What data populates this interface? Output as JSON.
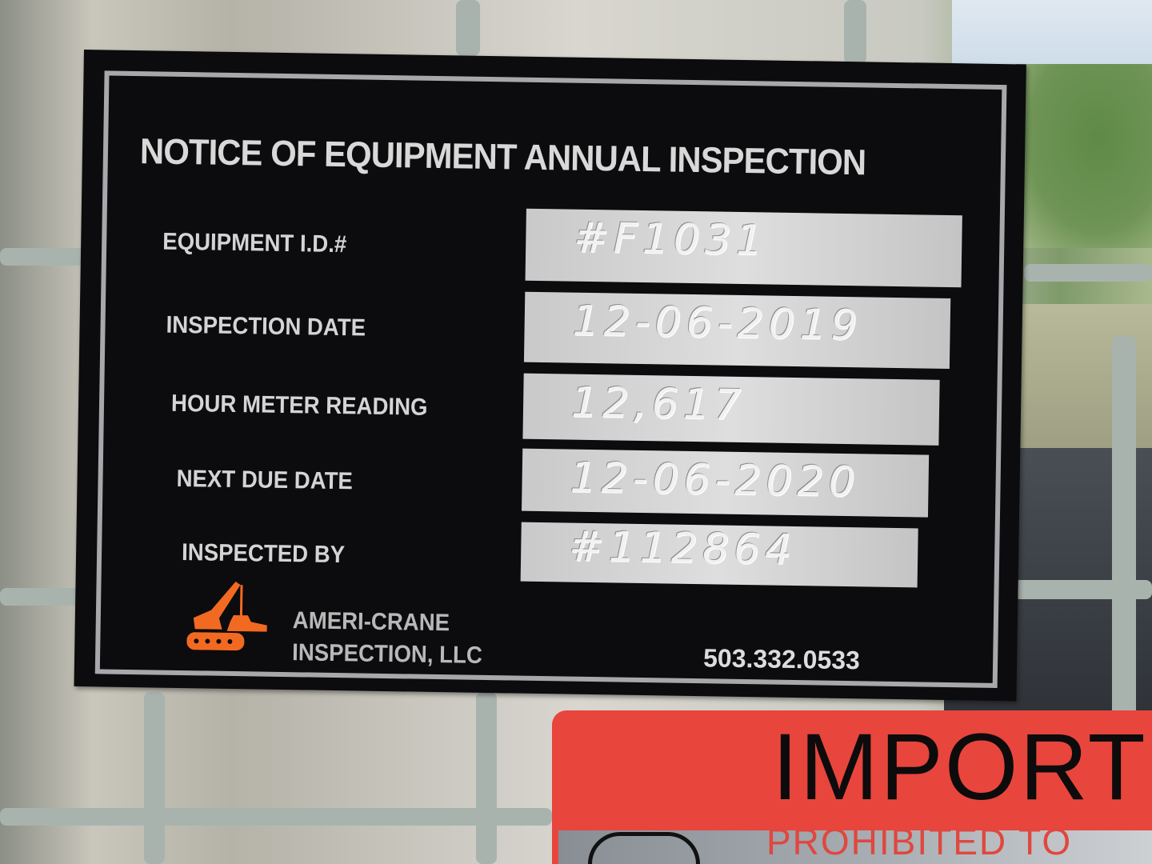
{
  "plate": {
    "title": "NOTICE OF EQUIPMENT ANNUAL INSPECTION",
    "fields": [
      {
        "label": "EQUIPMENT I.D.#",
        "value": "#F1031"
      },
      {
        "label": "INSPECTION DATE",
        "value": "12-06-2019"
      },
      {
        "label": "HOUR METER READING",
        "value": "12,617"
      },
      {
        "label": "NEXT DUE DATE",
        "value": "12-06-2020"
      },
      {
        "label": "INSPECTED BY",
        "value": "#112864"
      }
    ],
    "company_line1": "AMERI-CRANE",
    "company_line2": "INSPECTION, LLC",
    "phone": "503.332.0533",
    "logo_icon": "crane-icon",
    "logo_color": "#f26a21"
  },
  "sticker": {
    "heading": "IMPORT",
    "subtext": "PROHIBITED TO",
    "color": "#e8453d"
  }
}
